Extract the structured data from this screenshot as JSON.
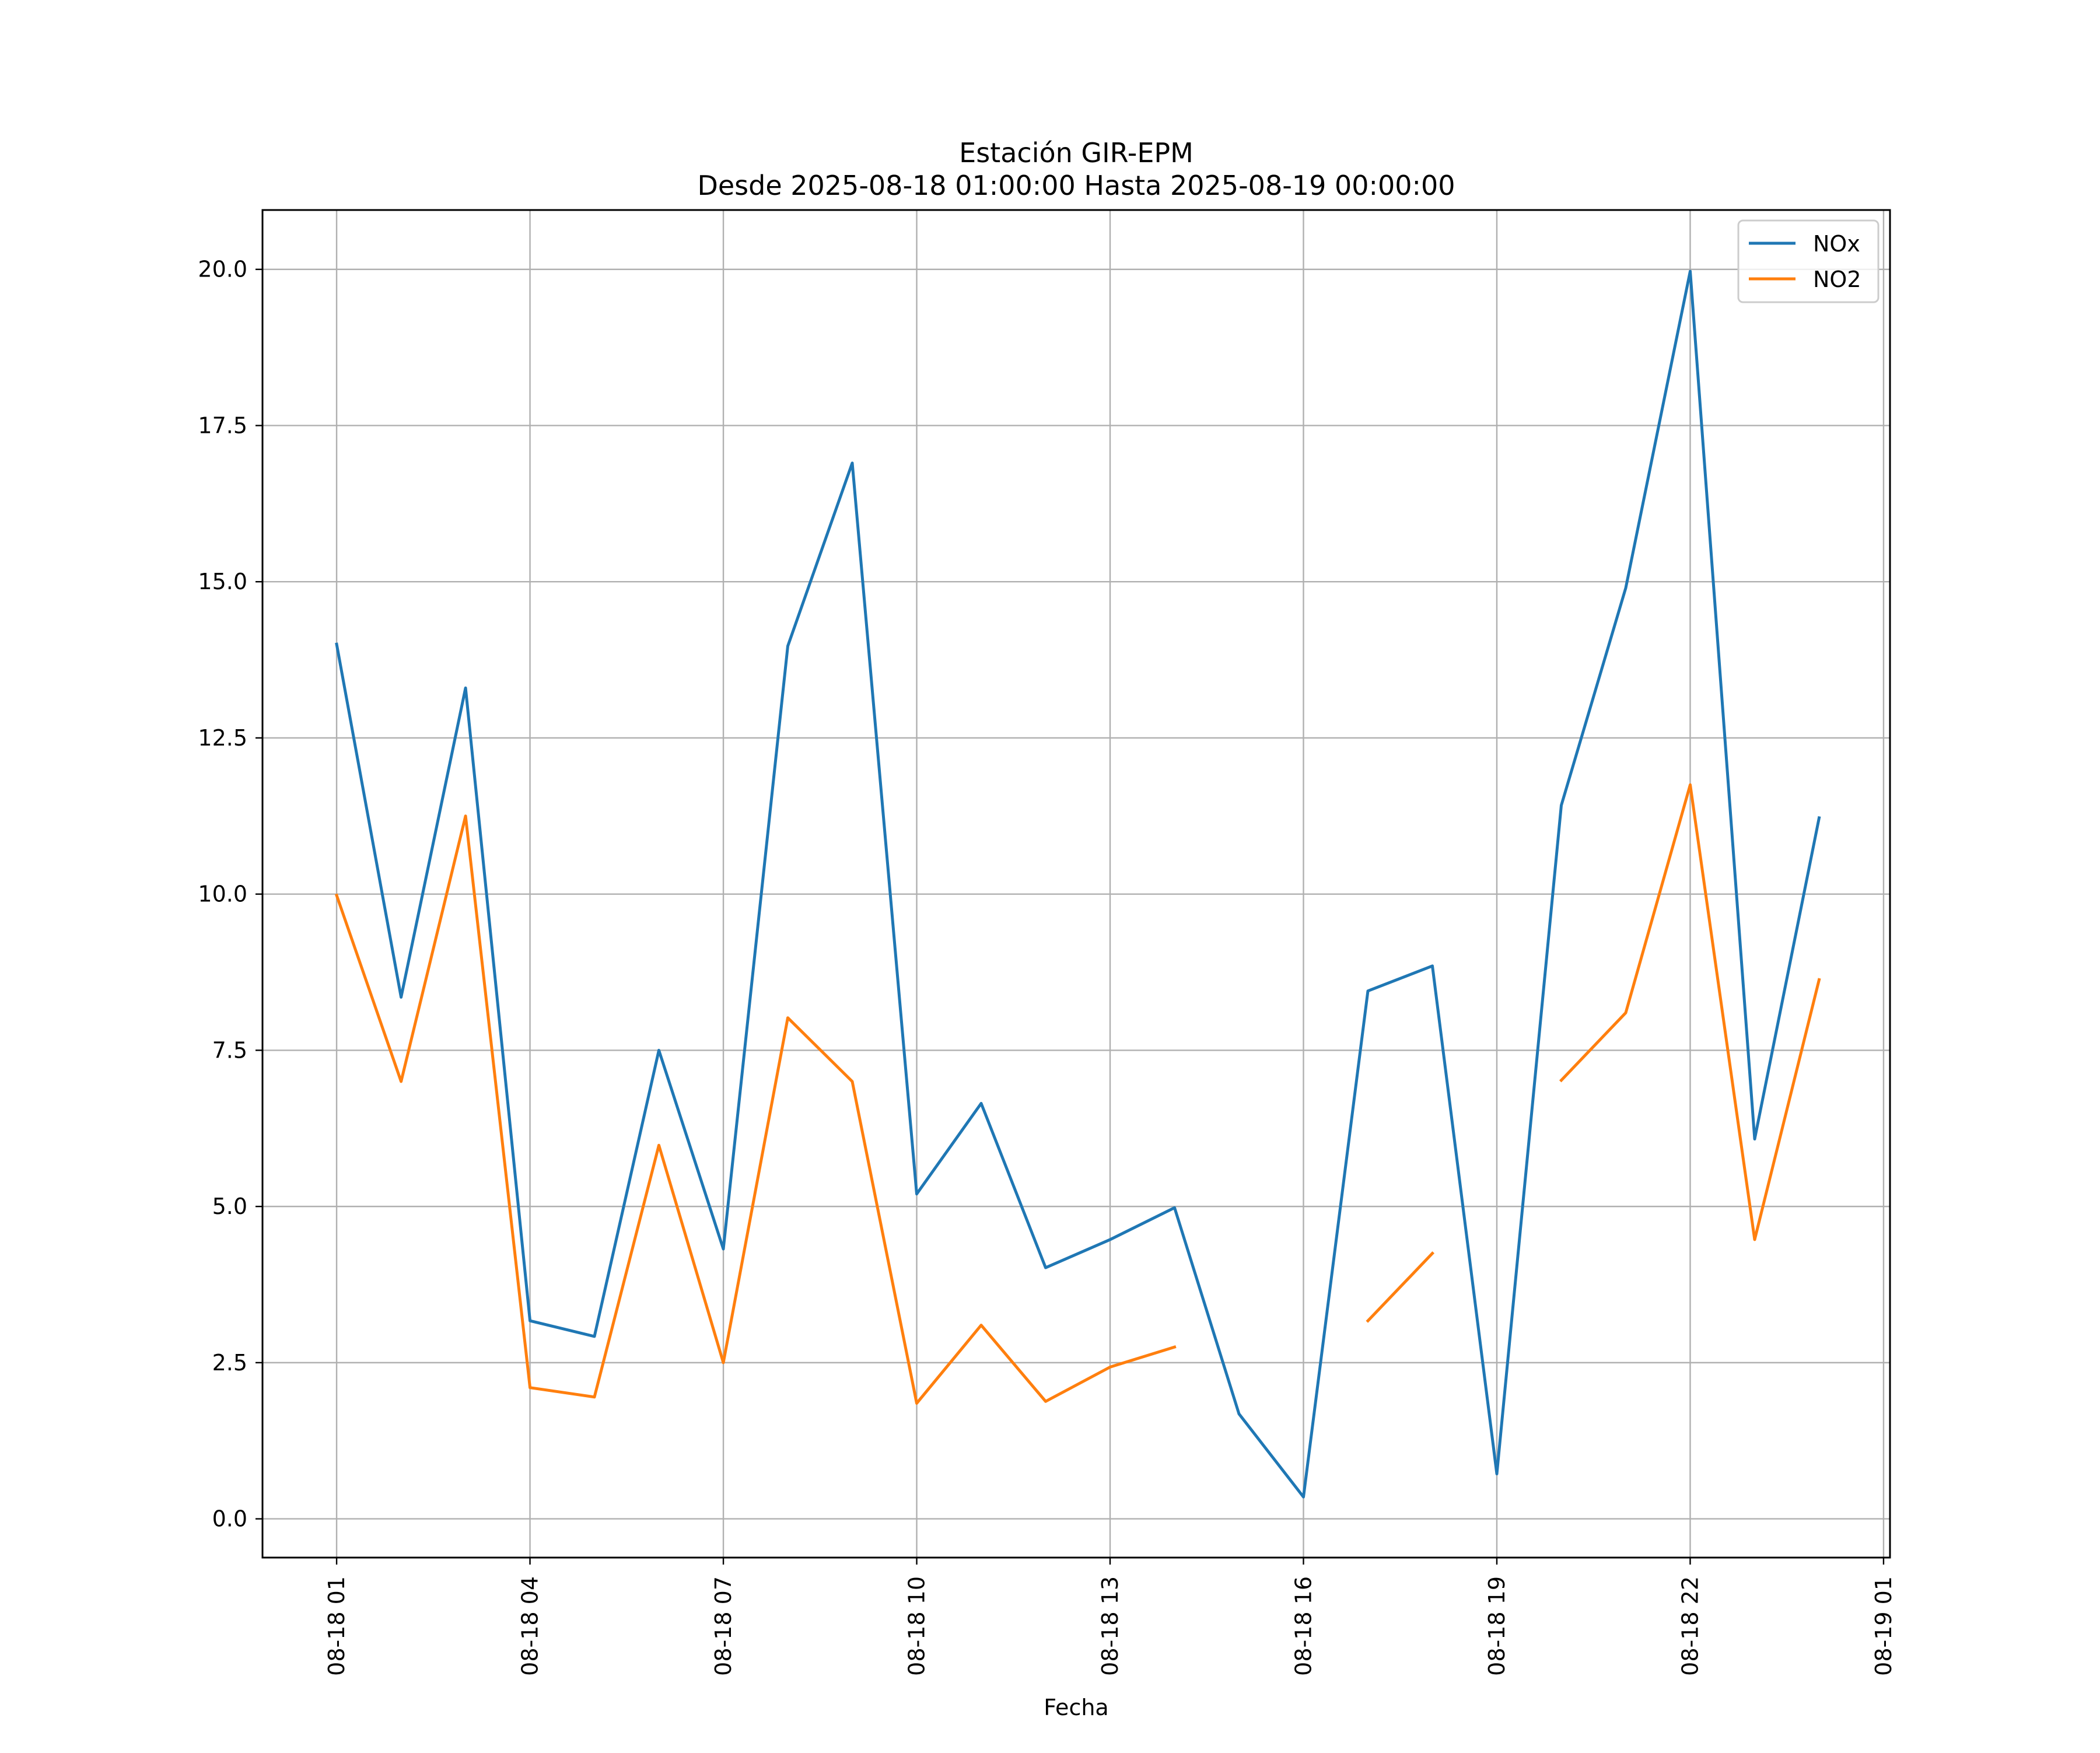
{
  "chart_data": {
    "type": "line",
    "title": "Estación GIR-EPM",
    "subtitle": "Desde 2025-08-18 01:00:00 Hasta 2025-08-19 00:00:00",
    "xlabel": "Fecha",
    "ylabel": "",
    "x_hours": [
      1,
      2,
      3,
      4,
      5,
      6,
      7,
      8,
      9,
      10,
      11,
      12,
      13,
      14,
      15,
      16,
      17,
      18,
      19,
      20,
      21,
      22,
      23,
      24
    ],
    "xlim": [
      -0.15,
      25.1
    ],
    "ylim": [
      -0.62,
      20.95
    ],
    "x_ticks": [
      {
        "hour": 1,
        "label": "08-18 01"
      },
      {
        "hour": 4,
        "label": "08-18 04"
      },
      {
        "hour": 7,
        "label": "08-18 07"
      },
      {
        "hour": 10,
        "label": "08-18 10"
      },
      {
        "hour": 13,
        "label": "08-18 13"
      },
      {
        "hour": 16,
        "label": "08-18 16"
      },
      {
        "hour": 19,
        "label": "08-18 19"
      },
      {
        "hour": 22,
        "label": "08-18 22"
      },
      {
        "hour": 25,
        "label": "08-19 01"
      }
    ],
    "y_ticks": [
      {
        "value": 0,
        "label": "0.0"
      },
      {
        "value": 2.5,
        "label": "2.5"
      },
      {
        "value": 5,
        "label": "5.0"
      },
      {
        "value": 7.5,
        "label": "7.5"
      },
      {
        "value": 10,
        "label": "10.0"
      },
      {
        "value": 12.5,
        "label": "12.5"
      },
      {
        "value": 15,
        "label": "15.0"
      },
      {
        "value": 17.5,
        "label": "17.5"
      },
      {
        "value": 20,
        "label": "20.0"
      }
    ],
    "grid": true,
    "legend_position": "top-right",
    "series": [
      {
        "name": "NOx",
        "color": "#1f77b4",
        "values": [
          14.0,
          8.35,
          13.3,
          3.17,
          2.92,
          7.5,
          4.32,
          13.97,
          16.9,
          5.2,
          6.65,
          4.02,
          4.47,
          4.98,
          1.68,
          0.35,
          8.45,
          8.85,
          0.72,
          11.42,
          14.9,
          19.97,
          6.08,
          11.22
        ]
      },
      {
        "name": "NO2",
        "color": "#ff7f0e",
        "values": [
          9.98,
          7.0,
          11.25,
          2.1,
          1.95,
          5.98,
          2.5,
          8.02,
          7.0,
          1.85,
          3.1,
          1.88,
          2.43,
          2.75,
          null,
          null,
          3.17,
          4.25,
          null,
          7.02,
          8.1,
          11.75,
          4.47,
          8.63
        ]
      }
    ]
  }
}
